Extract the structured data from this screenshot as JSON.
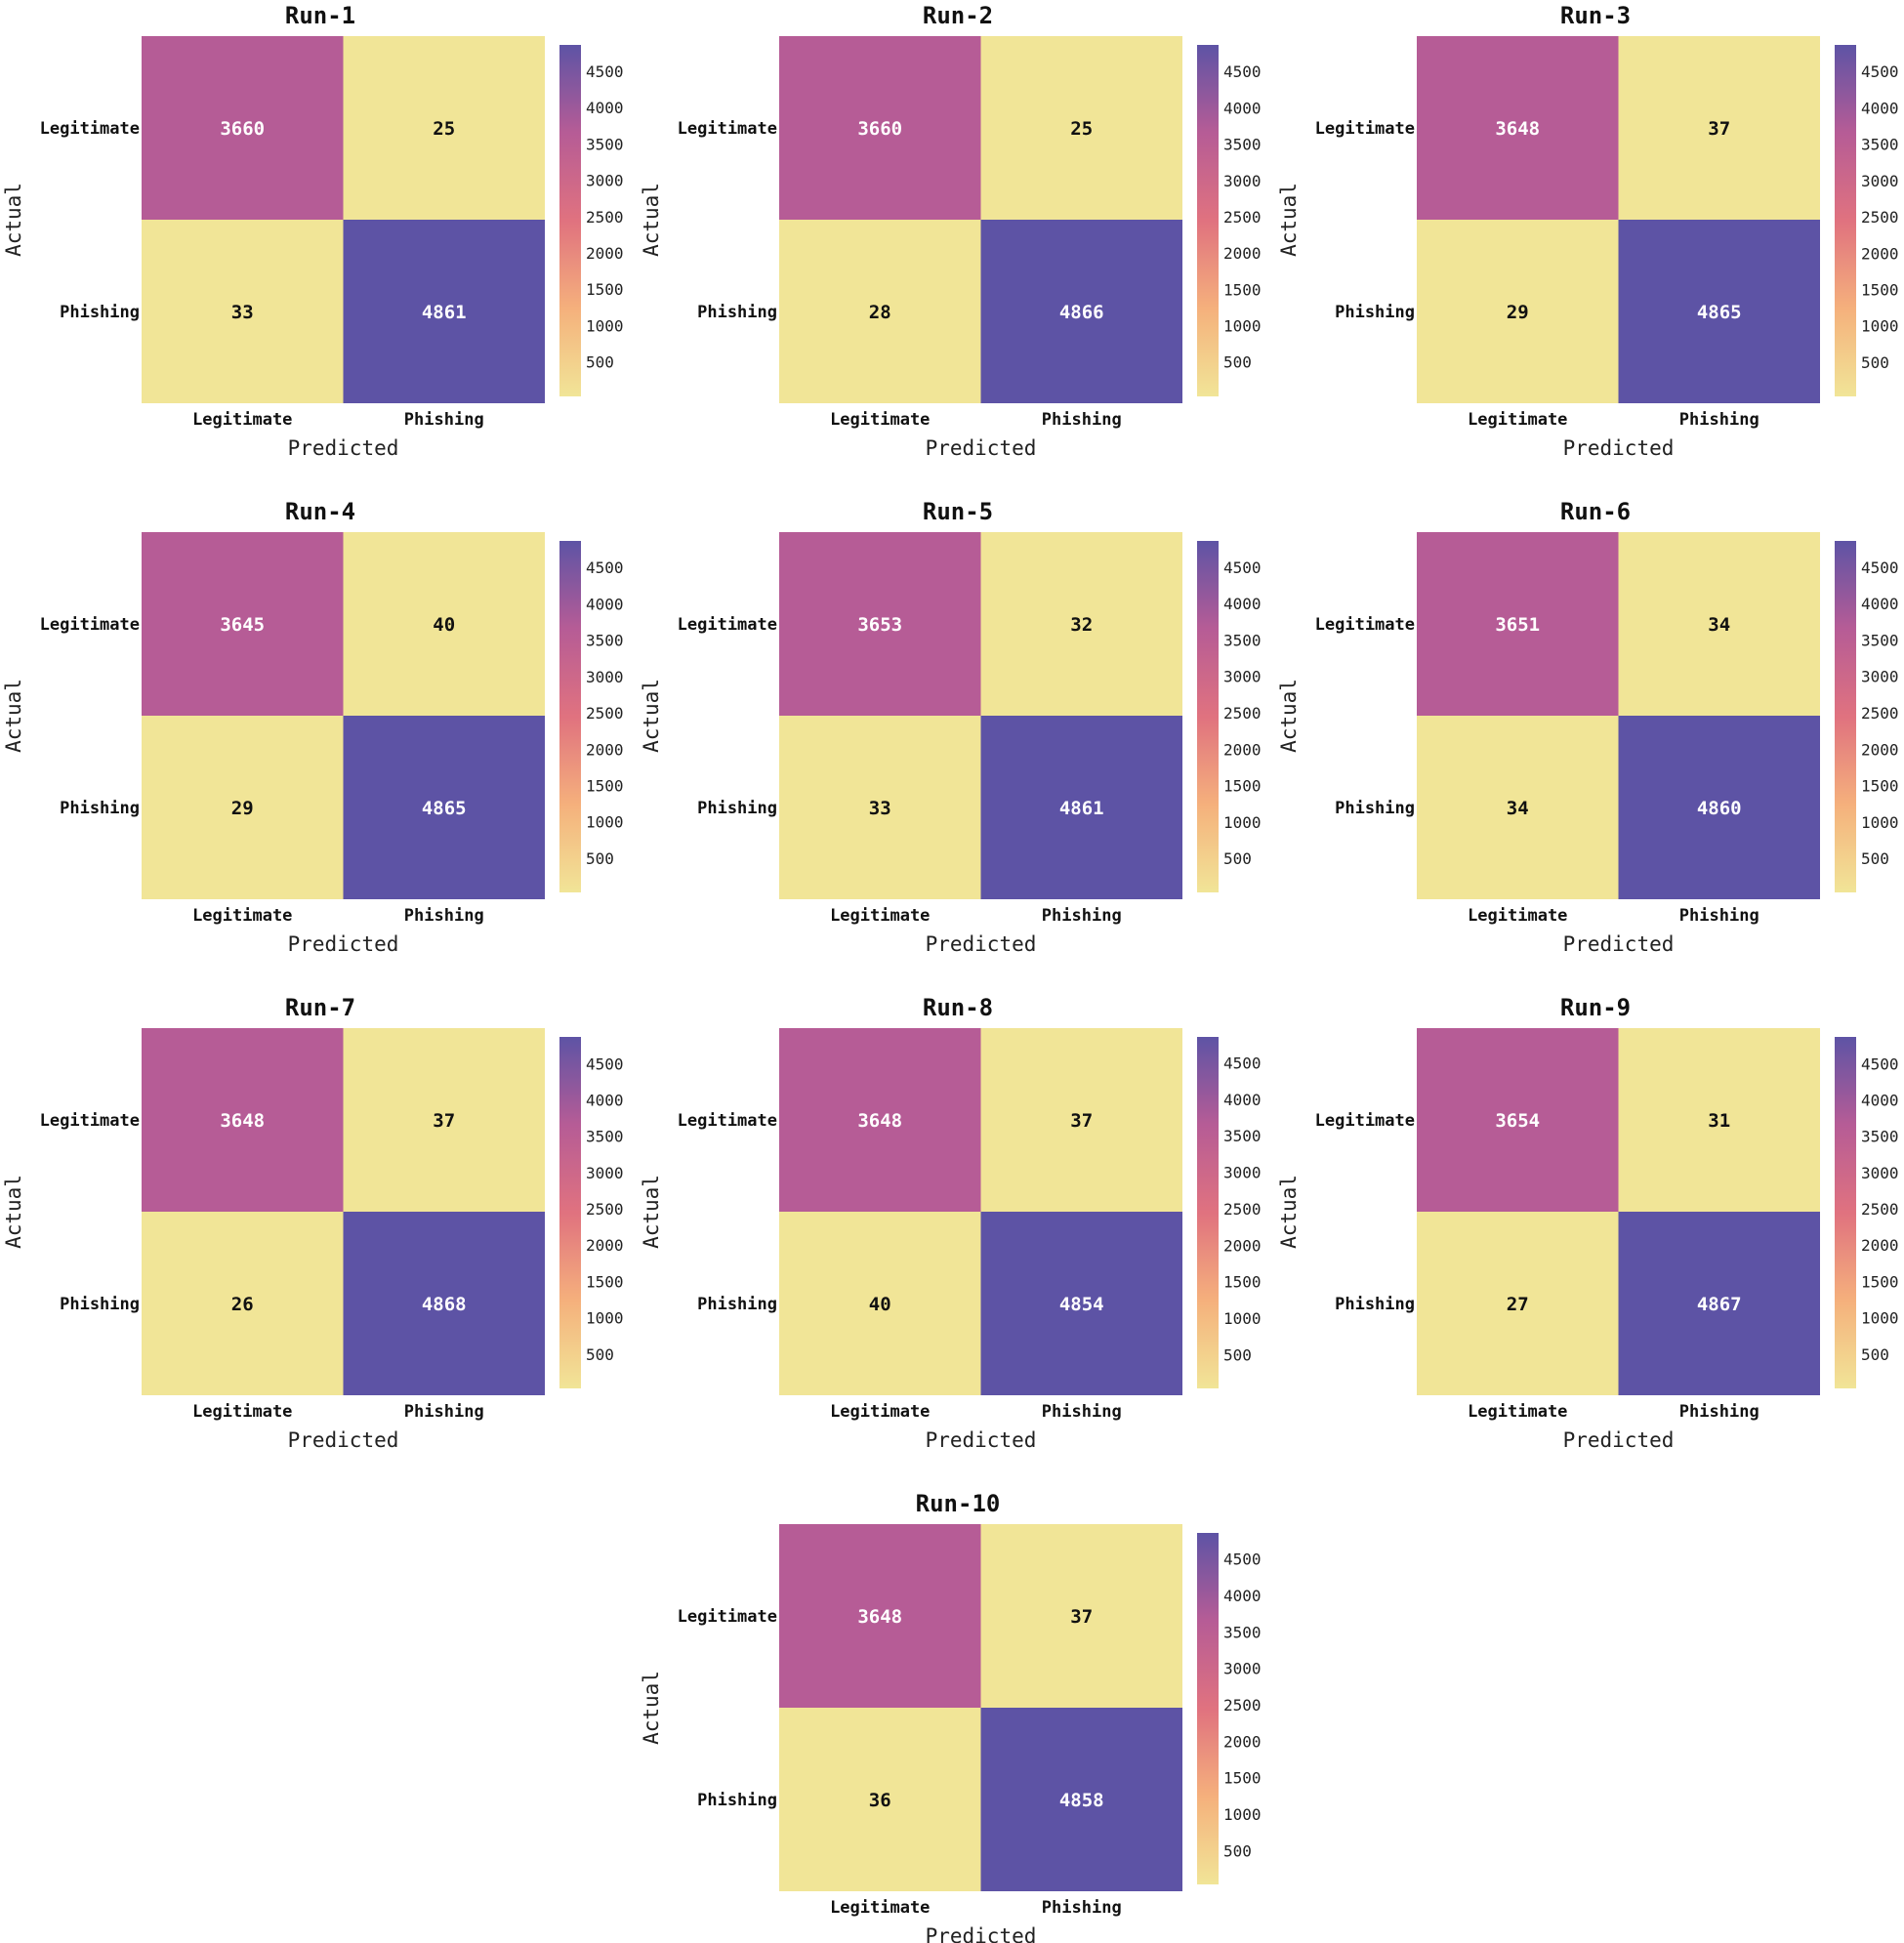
{
  "chart_data": {
    "type": "heatmap",
    "xlabel": "Predicted",
    "ylabel": "Actual",
    "x_tick_labels": [
      "Legitimate",
      "Phishing"
    ],
    "y_tick_labels": [
      "Legitimate",
      "Phishing"
    ],
    "colorbar_ticks": [
      500,
      1000,
      1500,
      2000,
      2500,
      3000,
      3500,
      4000,
      4500
    ],
    "colormap": [
      "#f1e597",
      "#f5b07c",
      "#e0727f",
      "#b65c96",
      "#5d53a5"
    ],
    "panels": [
      {
        "title": "Run-1",
        "matrix": [
          [
            3660,
            25
          ],
          [
            33,
            4861
          ]
        ]
      },
      {
        "title": "Run-2",
        "matrix": [
          [
            3660,
            25
          ],
          [
            28,
            4866
          ]
        ]
      },
      {
        "title": "Run-3",
        "matrix": [
          [
            3648,
            37
          ],
          [
            29,
            4865
          ]
        ]
      },
      {
        "title": "Run-4",
        "matrix": [
          [
            3645,
            40
          ],
          [
            29,
            4865
          ]
        ]
      },
      {
        "title": "Run-5",
        "matrix": [
          [
            3653,
            32
          ],
          [
            33,
            4861
          ]
        ]
      },
      {
        "title": "Run-6",
        "matrix": [
          [
            3651,
            34
          ],
          [
            34,
            4860
          ]
        ]
      },
      {
        "title": "Run-7",
        "matrix": [
          [
            3648,
            37
          ],
          [
            26,
            4868
          ]
        ]
      },
      {
        "title": "Run-8",
        "matrix": [
          [
            3648,
            37
          ],
          [
            40,
            4854
          ]
        ]
      },
      {
        "title": "Run-9",
        "matrix": [
          [
            3654,
            31
          ],
          [
            27,
            4867
          ]
        ]
      },
      {
        "title": "Run-10",
        "matrix": [
          [
            3648,
            37
          ],
          [
            36,
            4858
          ]
        ]
      }
    ]
  }
}
